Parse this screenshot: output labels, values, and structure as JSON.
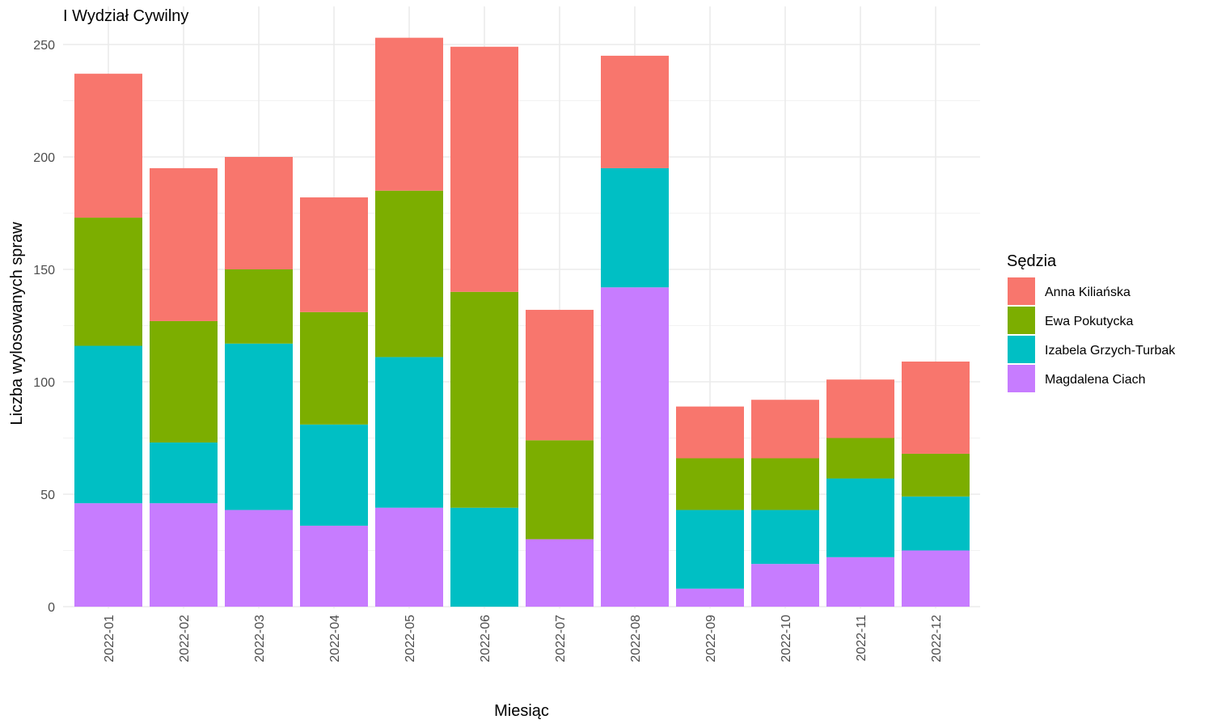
{
  "chart_data": {
    "type": "bar",
    "stacked": true,
    "title": "I Wydział Cywilny",
    "xlabel": "Miesiąc",
    "ylabel": "Liczba wylosowanych spraw",
    "ylim": [
      0,
      255
    ],
    "yticks": [
      0,
      50,
      100,
      150,
      200,
      250
    ],
    "grid": true,
    "legend_title": "Sędzia",
    "legend_position": "right",
    "categories": [
      "2022-01",
      "2022-02",
      "2022-03",
      "2022-04",
      "2022-05",
      "2022-06",
      "2022-07",
      "2022-08",
      "2022-09",
      "2022-10",
      "2022-11",
      "2022-12"
    ],
    "series": [
      {
        "name": "Magdalena Ciach",
        "color": "#C77CFF",
        "values": [
          46,
          46,
          43,
          36,
          44,
          0,
          30,
          142,
          8,
          19,
          22,
          25
        ]
      },
      {
        "name": "Izabela Grzych-Turbak",
        "color": "#00BFC4",
        "values": [
          70,
          27,
          74,
          45,
          67,
          44,
          0,
          53,
          35,
          24,
          35,
          24
        ]
      },
      {
        "name": "Ewa Pokutycka",
        "color": "#7CAE00",
        "values": [
          57,
          54,
          33,
          50,
          74,
          96,
          44,
          0,
          23,
          23,
          18,
          19
        ]
      },
      {
        "name": "Anna Kiliańska",
        "color": "#F8766D",
        "values": [
          64,
          68,
          50,
          51,
          68,
          109,
          58,
          50,
          23,
          26,
          26,
          41
        ]
      }
    ],
    "legend_order": [
      "Anna Kiliańska",
      "Ewa Pokutycka",
      "Izabela Grzych-Turbak",
      "Magdalena Ciach"
    ]
  }
}
